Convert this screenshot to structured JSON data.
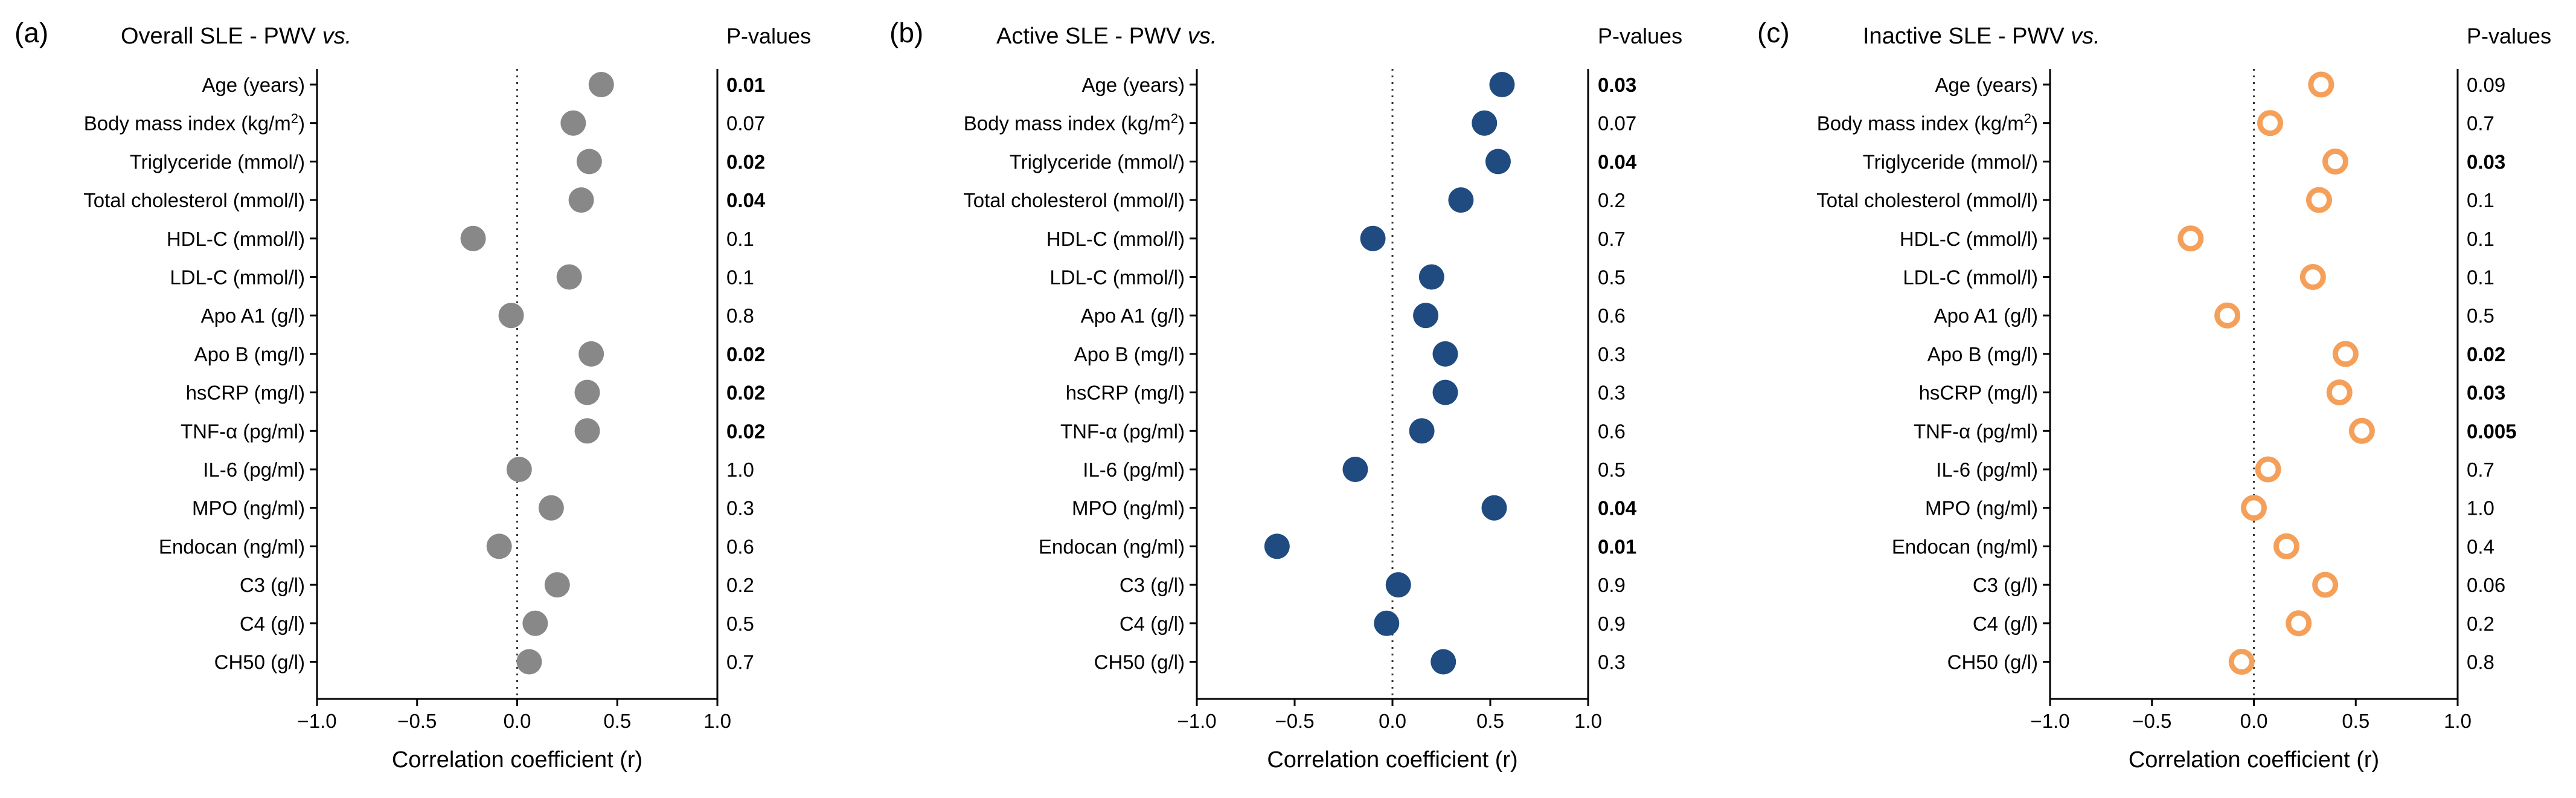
{
  "panels_meta": {
    "pvalue_header": "P-values",
    "xlabel": "Correlation coefficient (r)"
  },
  "chart_data": [
    {
      "type": "scatter",
      "panel_label": "(a)",
      "title_prefix": "Overall SLE - PWV ",
      "title_italic": "vs.",
      "xlabel": "Correlation coefficient (r)",
      "xlim": [
        -1.0,
        1.0
      ],
      "xticks": [
        "−1.0",
        "−0.5",
        "0.0",
        "0.5",
        "1.0"
      ],
      "marker": "filled",
      "color": "#888888",
      "categories": [
        "Age (years)",
        "Body mass index (kg/m2)",
        "Triglyceride (mmol/)",
        "Total cholesterol (mmol/l)",
        "HDL-C (mmol/l)",
        "LDL-C (mmol/l)",
        "Apo A1 (g/l)",
        "Apo B (mg/l)",
        "hsCRP (mg/l)",
        "TNF-α (pg/ml)",
        "IL-6 (pg/ml)",
        "MPO (ng/ml)",
        "Endocan (ng/ml)",
        "C3 (g/l)",
        "C4 (g/l)",
        "CH50 (g/l)"
      ],
      "values": [
        0.42,
        0.28,
        0.36,
        0.32,
        -0.22,
        0.26,
        -0.03,
        0.37,
        0.35,
        0.35,
        0.01,
        0.17,
        -0.09,
        0.2,
        0.09,
        0.06
      ],
      "pvalues": [
        "0.01",
        "0.07",
        "0.02",
        "0.04",
        "0.1",
        "0.1",
        "0.8",
        "0.02",
        "0.02",
        "0.02",
        "1.0",
        "0.3",
        "0.6",
        "0.2",
        "0.5",
        "0.7"
      ],
      "pvalues_bold": [
        true,
        false,
        true,
        true,
        false,
        false,
        false,
        true,
        true,
        true,
        false,
        false,
        false,
        false,
        false,
        false
      ]
    },
    {
      "type": "scatter",
      "panel_label": "(b)",
      "title_prefix": "Active SLE - PWV ",
      "title_italic": "vs.",
      "xlabel": "Correlation coefficient (r)",
      "xlim": [
        -1.0,
        1.0
      ],
      "xticks": [
        "−1.0",
        "−0.5",
        "0.0",
        "0.5",
        "1.0"
      ],
      "marker": "filled",
      "color": "#1f4b80",
      "categories": [
        "Age (years)",
        "Body mass index (kg/m2)",
        "Triglyceride (mmol/)",
        "Total cholesterol (mmol/l)",
        "HDL-C (mmol/l)",
        "LDL-C (mmol/l)",
        "Apo A1 (g/l)",
        "Apo B (mg/l)",
        "hsCRP (mg/l)",
        "TNF-α (pg/ml)",
        "IL-6 (pg/ml)",
        "MPO (ng/ml)",
        "Endocan (ng/ml)",
        "C3 (g/l)",
        "C4 (g/l)",
        "CH50 (g/l)"
      ],
      "values": [
        0.56,
        0.47,
        0.54,
        0.35,
        -0.1,
        0.2,
        0.17,
        0.27,
        0.27,
        0.15,
        -0.19,
        0.52,
        -0.59,
        0.03,
        -0.03,
        0.26
      ],
      "pvalues": [
        "0.03",
        "0.07",
        "0.04",
        "0.2",
        "0.7",
        "0.5",
        "0.6",
        "0.3",
        "0.3",
        "0.6",
        "0.5",
        "0.04",
        "0.01",
        "0.9",
        "0.9",
        "0.3"
      ],
      "pvalues_bold": [
        true,
        false,
        true,
        false,
        false,
        false,
        false,
        false,
        false,
        false,
        false,
        true,
        true,
        false,
        false,
        false
      ]
    },
    {
      "type": "scatter",
      "panel_label": "(c)",
      "title_prefix": "Inactive SLE - PWV ",
      "title_italic": "vs.",
      "xlabel": "Correlation coefficient (r)",
      "xlim": [
        -1.0,
        1.0
      ],
      "xticks": [
        "−1.0",
        "−0.5",
        "0.0",
        "0.5",
        "1.0"
      ],
      "marker": "open",
      "color": "#f5a05a",
      "categories": [
        "Age (years)",
        "Body mass index (kg/m2)",
        "Triglyceride (mmol/)",
        "Total cholesterol (mmol/l)",
        "HDL-C (mmol/l)",
        "LDL-C (mmol/l)",
        "Apo A1 (g/l)",
        "Apo B (mg/l)",
        "hsCRP (mg/l)",
        "TNF-α (pg/ml)",
        "IL-6 (pg/ml)",
        "MPO (ng/ml)",
        "Endocan (ng/ml)",
        "C3 (g/l)",
        "C4 (g/l)",
        "CH50 (g/l)"
      ],
      "values": [
        0.33,
        0.08,
        0.4,
        0.32,
        -0.31,
        0.29,
        -0.13,
        0.45,
        0.42,
        0.53,
        0.07,
        0.0,
        0.16,
        0.35,
        0.22,
        -0.06
      ],
      "pvalues": [
        "0.09",
        "0.7",
        "0.03",
        "0.1",
        "0.1",
        "0.1",
        "0.5",
        "0.02",
        "0.03",
        "0.005",
        "0.7",
        "1.0",
        "0.4",
        "0.06",
        "0.2",
        "0.8"
      ],
      "pvalues_bold": [
        false,
        false,
        true,
        false,
        false,
        false,
        false,
        true,
        true,
        true,
        false,
        false,
        false,
        false,
        false,
        false
      ]
    }
  ]
}
